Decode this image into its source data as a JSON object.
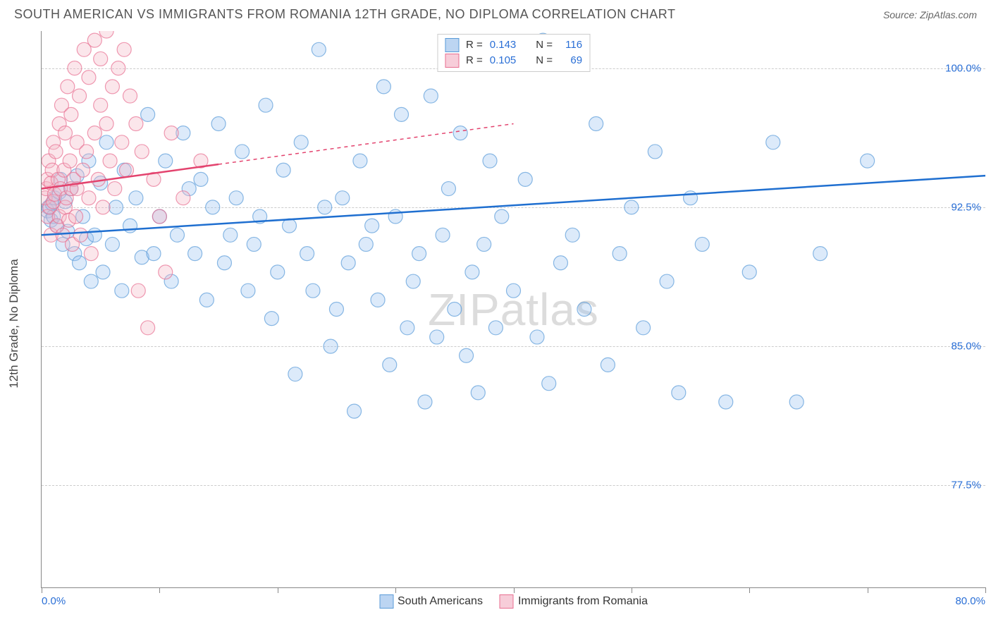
{
  "header": {
    "title": "SOUTH AMERICAN VS IMMIGRANTS FROM ROMANIA 12TH GRADE, NO DIPLOMA CORRELATION CHART",
    "source_label": "Source: ",
    "source_value": "ZipAtlas.com"
  },
  "chart": {
    "type": "scatter",
    "y_axis_label": "12th Grade, No Diploma",
    "watermark": "ZIPatlas",
    "xlim": [
      0,
      80
    ],
    "ylim": [
      72,
      102
    ],
    "x_ticks": [
      0,
      10,
      20,
      30,
      40,
      50,
      60,
      70,
      80
    ],
    "x_tick_labels": {
      "0": "0.0%",
      "80": "80.0%"
    },
    "y_grid": [
      77.5,
      85.0,
      92.5,
      100.0
    ],
    "y_grid_labels": [
      "77.5%",
      "85.0%",
      "92.5%",
      "100.0%"
    ],
    "background_color": "#ffffff",
    "grid_color": "#cccccc",
    "axis_color": "#888888",
    "label_color": "#2a6fd6",
    "marker_radius": 10,
    "marker_opacity": 0.35,
    "marker_stroke_opacity": 0.7,
    "line_width": 2.5,
    "series": [
      {
        "name": "South Americans",
        "color_fill": "#9cc3f0",
        "color_stroke": "#5a9bd8",
        "trend_color": "#1f6fd0",
        "trend": {
          "x1": 0,
          "y1": 91.0,
          "x2": 80,
          "y2": 94.2,
          "solid_until_x": 80
        },
        "R": "0.143",
        "N": "116",
        "points": [
          [
            0.5,
            92.3
          ],
          [
            0.6,
            92.5
          ],
          [
            0.8,
            91.8
          ],
          [
            0.9,
            92.7
          ],
          [
            1.0,
            92.0
          ],
          [
            1.1,
            93.0
          ],
          [
            1.3,
            91.5
          ],
          [
            1.5,
            93.3
          ],
          [
            1.6,
            94.0
          ],
          [
            1.8,
            90.5
          ],
          [
            2.0,
            92.8
          ],
          [
            2.2,
            91.2
          ],
          [
            2.5,
            93.5
          ],
          [
            2.8,
            90.0
          ],
          [
            3.0,
            94.2
          ],
          [
            3.2,
            89.5
          ],
          [
            3.5,
            92.0
          ],
          [
            3.8,
            90.8
          ],
          [
            4.0,
            95.0
          ],
          [
            4.2,
            88.5
          ],
          [
            4.5,
            91.0
          ],
          [
            5.0,
            93.8
          ],
          [
            5.2,
            89.0
          ],
          [
            5.5,
            96.0
          ],
          [
            6.0,
            90.5
          ],
          [
            6.3,
            92.5
          ],
          [
            6.8,
            88.0
          ],
          [
            7.0,
            94.5
          ],
          [
            7.5,
            91.5
          ],
          [
            8.0,
            93.0
          ],
          [
            8.5,
            89.8
          ],
          [
            9.0,
            97.5
          ],
          [
            9.5,
            90.0
          ],
          [
            10.0,
            92.0
          ],
          [
            10.5,
            95.0
          ],
          [
            11.0,
            88.5
          ],
          [
            11.5,
            91.0
          ],
          [
            12.0,
            96.5
          ],
          [
            12.5,
            93.5
          ],
          [
            13.0,
            90.0
          ],
          [
            13.5,
            94.0
          ],
          [
            14.0,
            87.5
          ],
          [
            14.5,
            92.5
          ],
          [
            15.0,
            97.0
          ],
          [
            15.5,
            89.5
          ],
          [
            16.0,
            91.0
          ],
          [
            16.5,
            93.0
          ],
          [
            17.0,
            95.5
          ],
          [
            17.5,
            88.0
          ],
          [
            18.0,
            90.5
          ],
          [
            18.5,
            92.0
          ],
          [
            19.0,
            98.0
          ],
          [
            19.5,
            86.5
          ],
          [
            20.0,
            89.0
          ],
          [
            20.5,
            94.5
          ],
          [
            21.0,
            91.5
          ],
          [
            21.5,
            83.5
          ],
          [
            22.0,
            96.0
          ],
          [
            22.5,
            90.0
          ],
          [
            23.0,
            88.0
          ],
          [
            23.5,
            101.0
          ],
          [
            24.0,
            92.5
          ],
          [
            24.5,
            85.0
          ],
          [
            25.0,
            87.0
          ],
          [
            25.5,
            93.0
          ],
          [
            26.0,
            89.5
          ],
          [
            26.5,
            81.5
          ],
          [
            27.0,
            95.0
          ],
          [
            27.5,
            90.5
          ],
          [
            28.0,
            91.5
          ],
          [
            28.5,
            87.5
          ],
          [
            29.0,
            99.0
          ],
          [
            29.5,
            84.0
          ],
          [
            30.0,
            92.0
          ],
          [
            30.5,
            97.5
          ],
          [
            31.0,
            86.0
          ],
          [
            31.5,
            88.5
          ],
          [
            32.0,
            90.0
          ],
          [
            32.5,
            82.0
          ],
          [
            33.0,
            98.5
          ],
          [
            33.5,
            85.5
          ],
          [
            34.0,
            91.0
          ],
          [
            34.5,
            93.5
          ],
          [
            35.0,
            87.0
          ],
          [
            35.5,
            96.5
          ],
          [
            36.0,
            84.5
          ],
          [
            36.5,
            89.0
          ],
          [
            37.0,
            82.5
          ],
          [
            37.5,
            90.5
          ],
          [
            38.0,
            95.0
          ],
          [
            38.5,
            86.0
          ],
          [
            39.0,
            92.0
          ],
          [
            40.0,
            88.0
          ],
          [
            41.0,
            94.0
          ],
          [
            42.0,
            85.5
          ],
          [
            42.5,
            101.5
          ],
          [
            43.0,
            83.0
          ],
          [
            44.0,
            89.5
          ],
          [
            45.0,
            91.0
          ],
          [
            46.0,
            87.0
          ],
          [
            47.0,
            97.0
          ],
          [
            48.0,
            84.0
          ],
          [
            49.0,
            90.0
          ],
          [
            50.0,
            92.5
          ],
          [
            51.0,
            86.0
          ],
          [
            52.0,
            95.5
          ],
          [
            53.0,
            88.5
          ],
          [
            54.0,
            82.5
          ],
          [
            55.0,
            93.0
          ],
          [
            56.0,
            90.5
          ],
          [
            58.0,
            82.0
          ],
          [
            60.0,
            89.0
          ],
          [
            62.0,
            96.0
          ],
          [
            64.0,
            82.0
          ],
          [
            66.0,
            90.0
          ],
          [
            70.0,
            95.0
          ]
        ]
      },
      {
        "name": "Immigrants from Romania",
        "color_fill": "#f4b8c6",
        "color_stroke": "#e86f91",
        "trend_color": "#e3436e",
        "trend": {
          "x1": 0,
          "y1": 93.5,
          "x2": 40,
          "y2": 97.0,
          "solid_until_x": 15
        },
        "R": "0.105",
        "N": "69",
        "points": [
          [
            0.3,
            93.0
          ],
          [
            0.4,
            93.5
          ],
          [
            0.5,
            94.0
          ],
          [
            0.5,
            92.0
          ],
          [
            0.6,
            95.0
          ],
          [
            0.7,
            92.5
          ],
          [
            0.8,
            93.8
          ],
          [
            0.8,
            91.0
          ],
          [
            0.9,
            94.5
          ],
          [
            1.0,
            96.0
          ],
          [
            1.0,
            92.8
          ],
          [
            1.1,
            93.2
          ],
          [
            1.2,
            95.5
          ],
          [
            1.3,
            91.5
          ],
          [
            1.4,
            94.0
          ],
          [
            1.5,
            97.0
          ],
          [
            1.5,
            92.0
          ],
          [
            1.6,
            93.5
          ],
          [
            1.7,
            98.0
          ],
          [
            1.8,
            91.0
          ],
          [
            1.9,
            94.5
          ],
          [
            2.0,
            96.5
          ],
          [
            2.0,
            92.5
          ],
          [
            2.1,
            93.0
          ],
          [
            2.2,
            99.0
          ],
          [
            2.3,
            91.8
          ],
          [
            2.4,
            95.0
          ],
          [
            2.5,
            97.5
          ],
          [
            2.5,
            93.5
          ],
          [
            2.6,
            90.5
          ],
          [
            2.7,
            94.0
          ],
          [
            2.8,
            100.0
          ],
          [
            2.9,
            92.0
          ],
          [
            3.0,
            96.0
          ],
          [
            3.0,
            93.5
          ],
          [
            3.2,
            98.5
          ],
          [
            3.3,
            91.0
          ],
          [
            3.5,
            94.5
          ],
          [
            3.6,
            101.0
          ],
          [
            3.8,
            95.5
          ],
          [
            4.0,
            93.0
          ],
          [
            4.0,
            99.5
          ],
          [
            4.2,
            90.0
          ],
          [
            4.5,
            96.5
          ],
          [
            4.5,
            101.5
          ],
          [
            4.8,
            94.0
          ],
          [
            5.0,
            98.0
          ],
          [
            5.0,
            100.5
          ],
          [
            5.2,
            92.5
          ],
          [
            5.5,
            97.0
          ],
          [
            5.5,
            102.0
          ],
          [
            5.8,
            95.0
          ],
          [
            6.0,
            99.0
          ],
          [
            6.2,
            93.5
          ],
          [
            6.5,
            100.0
          ],
          [
            6.8,
            96.0
          ],
          [
            7.0,
            101.0
          ],
          [
            7.2,
            94.5
          ],
          [
            7.5,
            98.5
          ],
          [
            8.0,
            97.0
          ],
          [
            8.2,
            88.0
          ],
          [
            8.5,
            95.5
          ],
          [
            9.0,
            86.0
          ],
          [
            9.5,
            94.0
          ],
          [
            10.0,
            92.0
          ],
          [
            10.5,
            89.0
          ],
          [
            11.0,
            96.5
          ],
          [
            12.0,
            93.0
          ],
          [
            13.5,
            95.0
          ]
        ]
      }
    ],
    "legend_top": {
      "rows": [
        {
          "swatch_fill": "#bcd5f2",
          "swatch_stroke": "#5a9bd8",
          "r_label": "R =",
          "r_value": "0.143",
          "n_label": "N =",
          "n_value": "116"
        },
        {
          "swatch_fill": "#f7cdd9",
          "swatch_stroke": "#e86f91",
          "r_label": "R =",
          "r_value": "0.105",
          "n_label": "N =",
          "n_value": "69"
        }
      ]
    },
    "legend_bottom": [
      {
        "swatch_fill": "#bcd5f2",
        "swatch_stroke": "#5a9bd8",
        "label": "South Americans"
      },
      {
        "swatch_fill": "#f7cdd9",
        "swatch_stroke": "#e86f91",
        "label": "Immigrants from Romania"
      }
    ]
  }
}
